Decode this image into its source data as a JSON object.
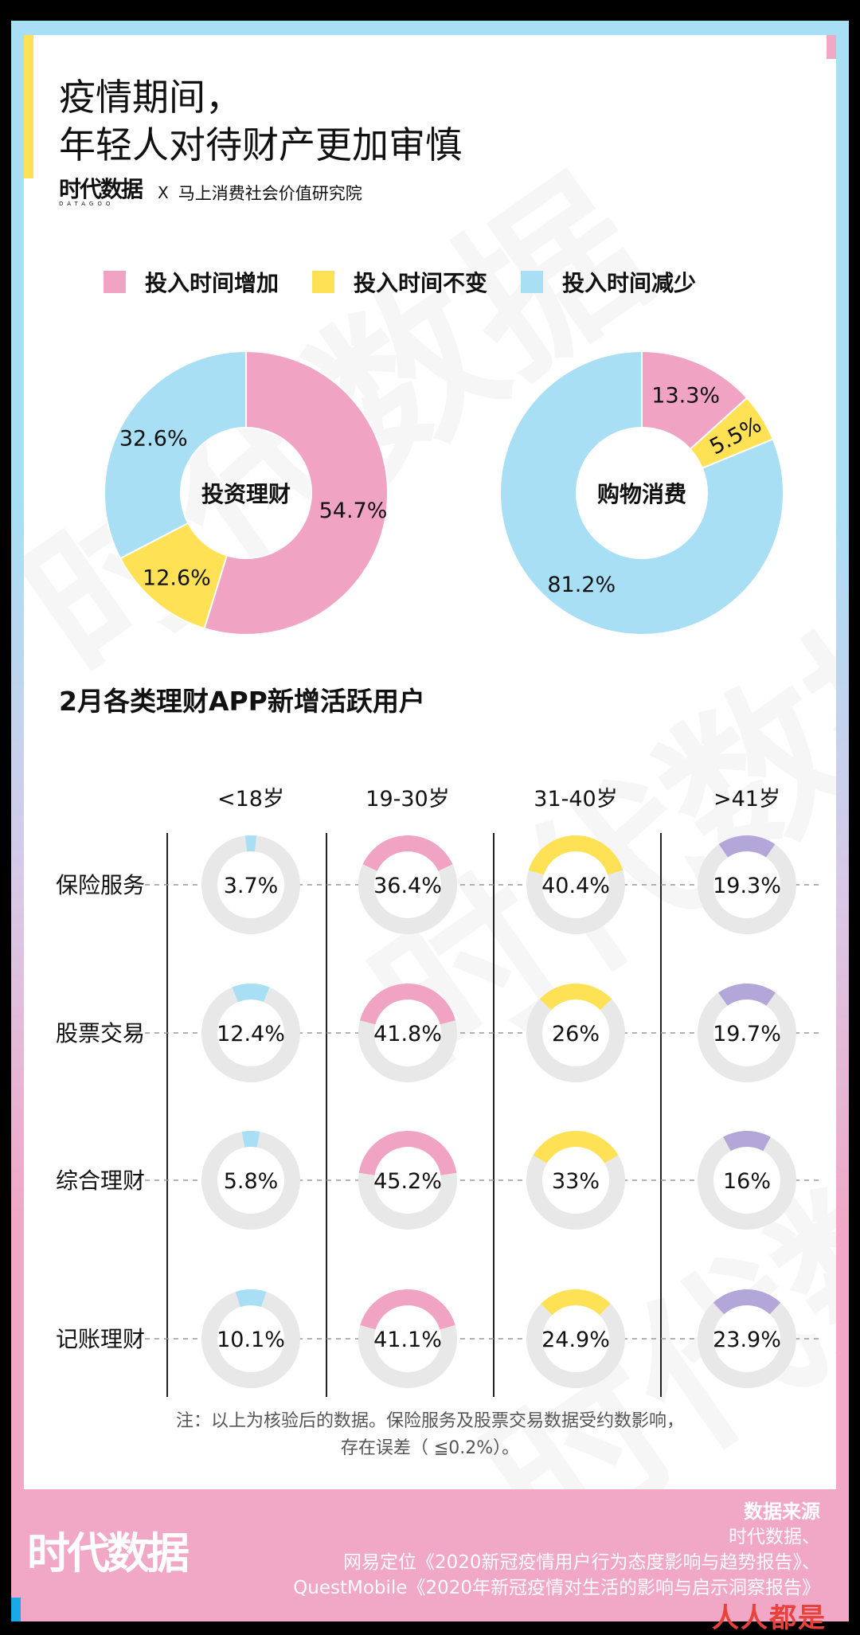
{
  "title_lines": [
    "疫情期间，",
    "年轻人对待财产更加审慎"
  ],
  "brand": {
    "logo": "时代数据",
    "logo_sub": "DATAGOO",
    "x": "X",
    "partner": "马上消费社会价值研究院"
  },
  "watermark": {
    "text": "时代数据",
    "sub": "DATAGOO"
  },
  "colors": {
    "pink": "#f0a3c3",
    "yellow": "#ffe156",
    "blue": "#a8dff5",
    "purple": "#b3a6d9",
    "track": "#e8e8e8",
    "footer": "#f0a8c6"
  },
  "legend": [
    {
      "label": "投入时间增加",
      "color": "#f0a3c3"
    },
    {
      "label": "投入时间不变",
      "color": "#ffe156"
    },
    {
      "label": "投入时间减少",
      "color": "#a8dff5"
    }
  ],
  "chart_data": [
    {
      "type": "pie",
      "variant": "donut",
      "center_label": "投资理财",
      "slices": [
        {
          "label": "投入时间增加",
          "value": 54.7,
          "text": "54.7%",
          "color": "#f0a3c3"
        },
        {
          "label": "投入时间不变",
          "value": 12.6,
          "text": "12.6%",
          "color": "#ffe156"
        },
        {
          "label": "投入时间减少",
          "value": 32.6,
          "text": "32.6%",
          "color": "#a8dff5"
        }
      ]
    },
    {
      "type": "pie",
      "variant": "donut",
      "center_label": "购物消费",
      "slices": [
        {
          "label": "投入时间增加",
          "value": 13.3,
          "text": "13.3%",
          "color": "#f0a3c3"
        },
        {
          "label": "投入时间不变",
          "value": 5.5,
          "text": "5.5%",
          "color": "#ffe156"
        },
        {
          "label": "投入时间减少",
          "value": 81.2,
          "text": "81.2%",
          "color": "#a8dff5"
        }
      ]
    },
    {
      "type": "heatmap",
      "variant": "gauge-grid",
      "title": "2月各类理财APP新增活跃用户",
      "columns": [
        "<18岁",
        "19-30岁",
        "31-40岁",
        ">41岁"
      ],
      "column_colors": [
        "#a8dff5",
        "#f0a3c3",
        "#ffe156",
        "#b3a6d9"
      ],
      "rows": [
        {
          "label": "保险服务",
          "values": [
            3.7,
            36.4,
            40.4,
            19.3
          ],
          "texts": [
            "3.7%",
            "36.4%",
            "40.4%",
            "19.3%"
          ]
        },
        {
          "label": "股票交易",
          "values": [
            12.4,
            41.8,
            26,
            19.7
          ],
          "texts": [
            "12.4%",
            "41.8%",
            "26%",
            "19.7%"
          ]
        },
        {
          "label": "综合理财",
          "values": [
            5.8,
            45.2,
            33,
            16
          ],
          "texts": [
            "5.8%",
            "45.2%",
            "33%",
            "16%"
          ]
        },
        {
          "label": "记账理财",
          "values": [
            10.1,
            41.1,
            24.9,
            23.9
          ],
          "texts": [
            "10.1%",
            "41.1%",
            "24.9%",
            "23.9%"
          ]
        }
      ]
    }
  ],
  "note": [
    "注：以上为核验后的数据。保险服务及股票交易数据受约数影响，",
    "存在误差（ ≦0.2%）。"
  ],
  "footer": {
    "logo": "时代数据",
    "source_title": "数据来源",
    "source_lines": [
      "时代数据、",
      "网易定位《2020新冠疫情用户行为态度影响与趋势报告》、",
      "QuestMobile《2020年新冠疫情对生活的影响与启示洞察报告》"
    ],
    "corner_logo": "人人都是"
  }
}
